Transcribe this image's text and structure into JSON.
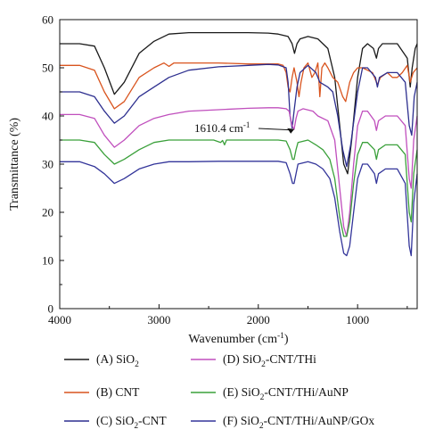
{
  "chart_data": {
    "type": "line",
    "xlabel": "Wavenumber (cm",
    "xlabel_sup": "-1",
    "xlabel_close": ")",
    "ylabel": "Transmittance (%)",
    "xlim": [
      4000,
      400
    ],
    "ylim": [
      0,
      60
    ],
    "xticks": [
      4000,
      3000,
      2000,
      1000
    ],
    "yticks": [
      0,
      10,
      20,
      30,
      40,
      50,
      60
    ],
    "grid": false,
    "legend_position": "bottom",
    "annotation": {
      "text": "1610.4 cm",
      "sup": "-1",
      "x": 1610.4,
      "y": 38
    },
    "series": [
      {
        "name": "(A) SiO",
        "sub": "2",
        "color": "#1a1a1a",
        "points": [
          [
            4000,
            55
          ],
          [
            3800,
            55
          ],
          [
            3650,
            54.5
          ],
          [
            3550,
            50
          ],
          [
            3450,
            44.5
          ],
          [
            3350,
            47
          ],
          [
            3200,
            53
          ],
          [
            3050,
            55.5
          ],
          [
            2900,
            57
          ],
          [
            2700,
            57.3
          ],
          [
            2400,
            57.3
          ],
          [
            2100,
            57.3
          ],
          [
            1900,
            57.2
          ],
          [
            1800,
            57
          ],
          [
            1700,
            56.5
          ],
          [
            1660,
            55
          ],
          [
            1635,
            53
          ],
          [
            1610,
            55
          ],
          [
            1580,
            56
          ],
          [
            1500,
            56.5
          ],
          [
            1400,
            56
          ],
          [
            1300,
            54
          ],
          [
            1230,
            48
          ],
          [
            1180,
            38
          ],
          [
            1140,
            30
          ],
          [
            1100,
            28
          ],
          [
            1060,
            35
          ],
          [
            1000,
            48
          ],
          [
            950,
            54
          ],
          [
            900,
            55
          ],
          [
            840,
            54
          ],
          [
            810,
            52
          ],
          [
            790,
            54
          ],
          [
            750,
            55
          ],
          [
            600,
            55
          ],
          [
            500,
            52
          ],
          [
            470,
            46
          ],
          [
            450,
            50
          ],
          [
            420,
            54
          ],
          [
            400,
            55
          ]
        ]
      },
      {
        "name": "(B) CNT",
        "sub": "",
        "color": "#d9541e",
        "points": [
          [
            4000,
            50.5
          ],
          [
            3800,
            50.5
          ],
          [
            3650,
            49.5
          ],
          [
            3550,
            45
          ],
          [
            3450,
            41.5
          ],
          [
            3350,
            43
          ],
          [
            3200,
            48
          ],
          [
            3050,
            50
          ],
          [
            2950,
            51
          ],
          [
            2900,
            50.3
          ],
          [
            2850,
            51
          ],
          [
            2700,
            51
          ],
          [
            2400,
            51
          ],
          [
            2100,
            50.8
          ],
          [
            1900,
            50.8
          ],
          [
            1800,
            50.8
          ],
          [
            1750,
            50.5
          ],
          [
            1720,
            49
          ],
          [
            1700,
            46
          ],
          [
            1680,
            45
          ],
          [
            1660,
            48
          ],
          [
            1640,
            50
          ],
          [
            1610,
            47
          ],
          [
            1590,
            44
          ],
          [
            1570,
            47
          ],
          [
            1540,
            50
          ],
          [
            1500,
            51
          ],
          [
            1460,
            48
          ],
          [
            1430,
            49
          ],
          [
            1400,
            51
          ],
          [
            1380,
            44
          ],
          [
            1360,
            50
          ],
          [
            1330,
            51
          ],
          [
            1300,
            50
          ],
          [
            1250,
            48
          ],
          [
            1200,
            47
          ],
          [
            1150,
            44
          ],
          [
            1120,
            43
          ],
          [
            1080,
            47
          ],
          [
            1040,
            49
          ],
          [
            1000,
            50
          ],
          [
            950,
            50
          ],
          [
            900,
            49.5
          ],
          [
            850,
            49
          ],
          [
            800,
            46.5
          ],
          [
            770,
            48
          ],
          [
            700,
            49
          ],
          [
            650,
            48
          ],
          [
            600,
            48
          ],
          [
            550,
            49
          ],
          [
            500,
            50.5
          ],
          [
            470,
            47
          ],
          [
            440,
            49
          ],
          [
            400,
            50
          ]
        ]
      },
      {
        "name": "(C) SiO",
        "sub": "2",
        "tail": "-CNT",
        "color": "#2d2f8f",
        "points": [
          [
            4000,
            45
          ],
          [
            3800,
            45
          ],
          [
            3650,
            44
          ],
          [
            3550,
            41
          ],
          [
            3450,
            38.5
          ],
          [
            3350,
            40
          ],
          [
            3200,
            44
          ],
          [
            3050,
            46
          ],
          [
            2900,
            48
          ],
          [
            2700,
            49.5
          ],
          [
            2400,
            50.2
          ],
          [
            2100,
            50.5
          ],
          [
            1900,
            50.7
          ],
          [
            1800,
            50.6
          ],
          [
            1720,
            50
          ],
          [
            1700,
            47
          ],
          [
            1680,
            40
          ],
          [
            1660,
            37.5
          ],
          [
            1640,
            41
          ],
          [
            1610,
            46
          ],
          [
            1580,
            49
          ],
          [
            1500,
            50.5
          ],
          [
            1420,
            49
          ],
          [
            1380,
            47
          ],
          [
            1300,
            46
          ],
          [
            1250,
            45
          ],
          [
            1200,
            40
          ],
          [
            1150,
            33
          ],
          [
            1110,
            29.5
          ],
          [
            1070,
            34
          ],
          [
            1000,
            45
          ],
          [
            950,
            50
          ],
          [
            900,
            50
          ],
          [
            820,
            48
          ],
          [
            800,
            46
          ],
          [
            780,
            48
          ],
          [
            700,
            49
          ],
          [
            600,
            49
          ],
          [
            520,
            47
          ],
          [
            480,
            38
          ],
          [
            455,
            36
          ],
          [
            430,
            44
          ],
          [
            400,
            47
          ]
        ]
      },
      {
        "name": "(D) SiO",
        "sub": "2",
        "tail": "-CNT/THi",
        "color": "#c04fbd",
        "points": [
          [
            4000,
            40.3
          ],
          [
            3800,
            40.3
          ],
          [
            3650,
            39.5
          ],
          [
            3550,
            36
          ],
          [
            3450,
            33.5
          ],
          [
            3350,
            35
          ],
          [
            3200,
            38
          ],
          [
            3050,
            39.5
          ],
          [
            2900,
            40.3
          ],
          [
            2700,
            41
          ],
          [
            2400,
            41.3
          ],
          [
            2100,
            41.6
          ],
          [
            1900,
            41.7
          ],
          [
            1800,
            41.7
          ],
          [
            1720,
            41.5
          ],
          [
            1690,
            41
          ],
          [
            1660,
            38
          ],
          [
            1640,
            37.2
          ],
          [
            1620,
            39.5
          ],
          [
            1600,
            41
          ],
          [
            1550,
            41.5
          ],
          [
            1450,
            41
          ],
          [
            1400,
            40
          ],
          [
            1300,
            39
          ],
          [
            1230,
            35
          ],
          [
            1180,
            25
          ],
          [
            1140,
            17
          ],
          [
            1110,
            15
          ],
          [
            1080,
            20
          ],
          [
            1040,
            30
          ],
          [
            1000,
            38
          ],
          [
            950,
            41
          ],
          [
            900,
            41
          ],
          [
            830,
            39
          ],
          [
            810,
            37
          ],
          [
            790,
            39
          ],
          [
            720,
            40
          ],
          [
            600,
            40
          ],
          [
            520,
            38
          ],
          [
            480,
            27
          ],
          [
            460,
            25
          ],
          [
            435,
            35
          ],
          [
            400,
            40
          ]
        ]
      },
      {
        "name": "(E) SiO",
        "sub": "2",
        "tail": "-CNT/THi/AuNP",
        "color": "#3aa03a",
        "points": [
          [
            4000,
            35
          ],
          [
            3800,
            35
          ],
          [
            3650,
            34.5
          ],
          [
            3550,
            32
          ],
          [
            3450,
            30
          ],
          [
            3350,
            31
          ],
          [
            3200,
            33
          ],
          [
            3050,
            34.5
          ],
          [
            2900,
            35
          ],
          [
            2700,
            35
          ],
          [
            2450,
            35
          ],
          [
            2380,
            34.5
          ],
          [
            2360,
            34.9
          ],
          [
            2340,
            34
          ],
          [
            2320,
            35
          ],
          [
            2100,
            35
          ],
          [
            1900,
            35
          ],
          [
            1800,
            35
          ],
          [
            1720,
            34.8
          ],
          [
            1680,
            33
          ],
          [
            1655,
            31
          ],
          [
            1640,
            31
          ],
          [
            1620,
            33
          ],
          [
            1600,
            34.5
          ],
          [
            1500,
            35
          ],
          [
            1420,
            34
          ],
          [
            1350,
            33
          ],
          [
            1280,
            31
          ],
          [
            1230,
            27
          ],
          [
            1180,
            19
          ],
          [
            1140,
            15
          ],
          [
            1110,
            15
          ],
          [
            1080,
            18
          ],
          [
            1040,
            26
          ],
          [
            1000,
            32
          ],
          [
            950,
            34.5
          ],
          [
            900,
            34.5
          ],
          [
            830,
            33
          ],
          [
            810,
            31
          ],
          [
            790,
            33
          ],
          [
            720,
            34
          ],
          [
            600,
            34
          ],
          [
            520,
            32
          ],
          [
            480,
            20
          ],
          [
            460,
            18
          ],
          [
            435,
            28
          ],
          [
            400,
            33
          ]
        ]
      },
      {
        "name": "(F) SiO",
        "sub": "2",
        "tail": "-CNT/THi/AuNP/GOx",
        "color": "#33359a",
        "points": [
          [
            4000,
            30.5
          ],
          [
            3800,
            30.5
          ],
          [
            3650,
            29.5
          ],
          [
            3550,
            28
          ],
          [
            3450,
            26
          ],
          [
            3350,
            27
          ],
          [
            3200,
            29
          ],
          [
            3050,
            30
          ],
          [
            2900,
            30.5
          ],
          [
            2700,
            30.5
          ],
          [
            2400,
            30.6
          ],
          [
            2100,
            30.6
          ],
          [
            1900,
            30.6
          ],
          [
            1800,
            30.6
          ],
          [
            1720,
            30.3
          ],
          [
            1680,
            28
          ],
          [
            1655,
            26
          ],
          [
            1640,
            26
          ],
          [
            1620,
            28
          ],
          [
            1600,
            30
          ],
          [
            1500,
            30.5
          ],
          [
            1420,
            30
          ],
          [
            1350,
            29
          ],
          [
            1280,
            27
          ],
          [
            1230,
            23
          ],
          [
            1180,
            16
          ],
          [
            1140,
            11.5
          ],
          [
            1110,
            11
          ],
          [
            1080,
            13
          ],
          [
            1040,
            20
          ],
          [
            1000,
            27
          ],
          [
            950,
            30
          ],
          [
            900,
            30
          ],
          [
            830,
            28
          ],
          [
            810,
            26
          ],
          [
            790,
            28
          ],
          [
            720,
            29
          ],
          [
            600,
            29
          ],
          [
            520,
            26
          ],
          [
            480,
            13
          ],
          [
            460,
            11
          ],
          [
            435,
            22
          ],
          [
            400,
            28
          ]
        ]
      }
    ]
  }
}
